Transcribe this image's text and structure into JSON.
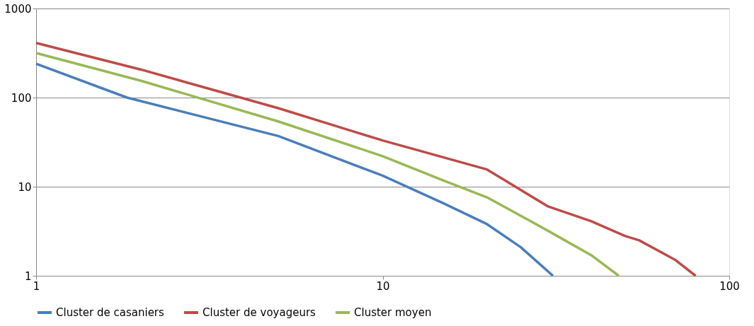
{
  "chart_data": {
    "type": "line",
    "log": "xy",
    "xlim": [
      1,
      100
    ],
    "ylim": [
      1,
      1000
    ],
    "xticks": [
      1,
      10,
      100
    ],
    "yticks": [
      1,
      10,
      100,
      1000
    ],
    "grid": "y",
    "legend": "bottom",
    "marker": "none",
    "line_style": "solid",
    "series": [
      {
        "name": "Cluster de casaniers",
        "color": "#4a7ebb",
        "x": [
          1,
          1.83,
          5,
          10,
          15,
          20,
          25,
          31
        ],
        "values": [
          240,
          100,
          37,
          13.3,
          6.5,
          3.8,
          2.1,
          1
        ]
      },
      {
        "name": "Cluster de voyageurs",
        "color": "#be4b48",
        "x": [
          1,
          2,
          5,
          10,
          20,
          30,
          40,
          50,
          55,
          70,
          80
        ],
        "values": [
          410,
          207,
          76,
          33,
          15.6,
          6,
          4.1,
          2.8,
          2.5,
          1.5,
          1
        ]
      },
      {
        "name": "Cluster moyen",
        "color": "#98b954",
        "x": [
          1,
          2,
          5,
          10,
          15,
          20,
          30,
          40,
          48
        ],
        "values": [
          316,
          155,
          54,
          22,
          11.7,
          7.6,
          3.2,
          1.7,
          1
        ]
      }
    ]
  }
}
